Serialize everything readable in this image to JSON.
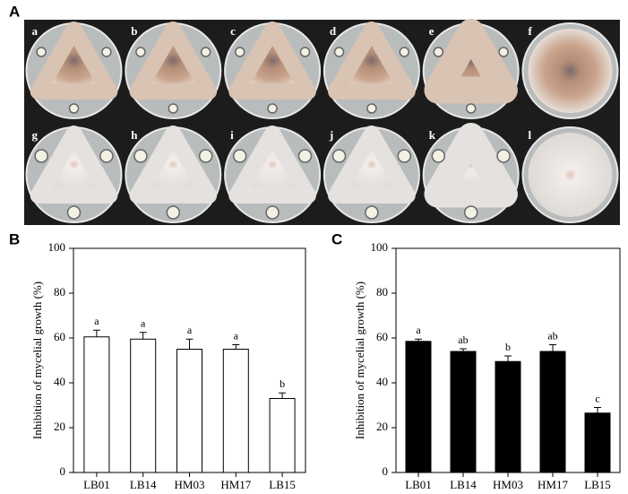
{
  "photo_panel": {
    "label": "A",
    "plates": [
      "a",
      "b",
      "c",
      "d",
      "e",
      "f",
      "g",
      "h",
      "i",
      "j",
      "k",
      "l"
    ]
  },
  "chart_data": [
    {
      "type": "bar",
      "panel_label": "B",
      "y_label": "Inhibition of mycelial growth (%)",
      "categories": [
        "LB01",
        "LB14",
        "HM03",
        "HM17",
        "LB15"
      ],
      "series": [
        {
          "color": "#ffffff",
          "values": [
            60.5,
            59.5,
            55,
            55,
            33
          ],
          "errors": [
            3,
            3,
            4.5,
            2,
            2.5
          ],
          "annotations": [
            "a",
            "a",
            "a",
            "a",
            "b"
          ]
        }
      ],
      "ylim": [
        0,
        100
      ],
      "yticks": [
        0,
        20,
        40,
        60,
        80,
        100
      ]
    },
    {
      "type": "bar",
      "panel_label": "C",
      "y_label": "Inhibition of mycelial growth (%)",
      "categories": [
        "LB01",
        "LB14",
        "HM03",
        "HM17",
        "LB15"
      ],
      "series": [
        {
          "color": "#000000",
          "values": [
            58.5,
            54,
            49.5,
            54,
            26.5
          ],
          "errors": [
            1,
            1.2,
            2.5,
            3,
            2.5
          ],
          "annotations": [
            "a",
            "ab",
            "b",
            "ab",
            "c"
          ]
        }
      ],
      "ylim": [
        0,
        100
      ],
      "yticks": [
        0,
        20,
        40,
        60,
        80,
        100
      ]
    }
  ]
}
